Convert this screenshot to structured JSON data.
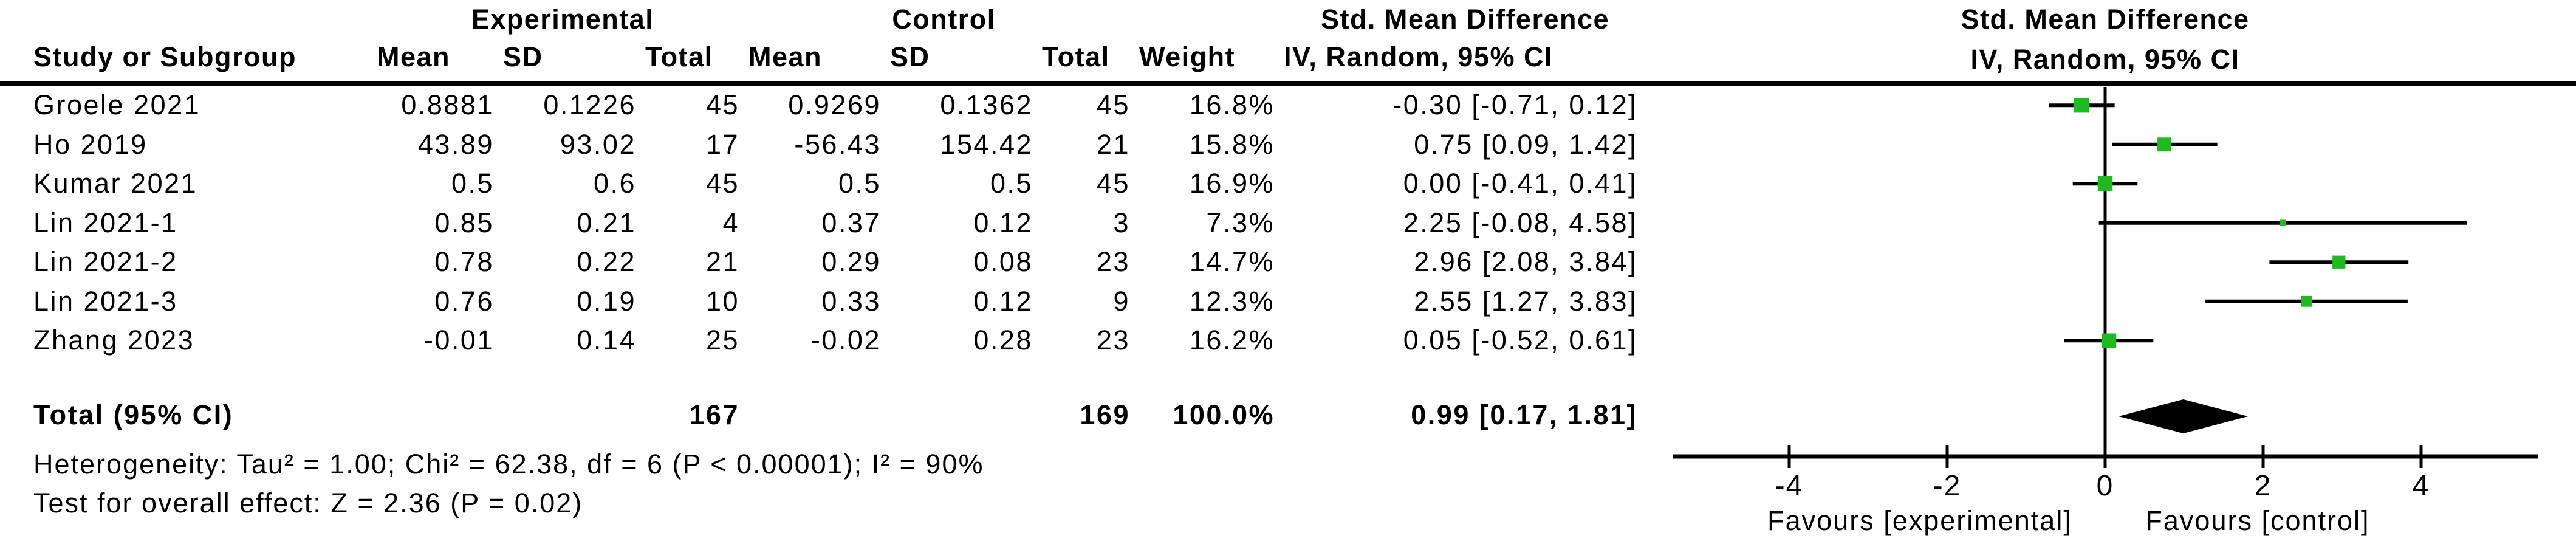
{
  "group_headers": {
    "experimental": "Experimental",
    "control": "Control",
    "smd_left": "Std. Mean Difference",
    "smd_right": "Std. Mean Difference"
  },
  "col_headers": {
    "study": "Study or Subgroup",
    "mean1": "Mean",
    "sd1": "SD",
    "total1": "Total",
    "mean2": "Mean",
    "sd2": "SD",
    "total2": "Total",
    "weight": "Weight",
    "iv_left": "IV, Random, 95% CI",
    "iv_right": "IV, Random, 95% CI"
  },
  "chart_data": {
    "type": "forest",
    "effect_measure": "Std. Mean Difference",
    "model": "IV, Random, 95% CI",
    "studies": [
      {
        "label": "Groele 2021",
        "exp_mean": "0.8881",
        "exp_sd": "0.1226",
        "exp_total": "45",
        "ctl_mean": "0.9269",
        "ctl_sd": "0.1362",
        "ctl_total": "45",
        "weight": "16.8%",
        "weight_value": 16.8,
        "ci_text": "-0.30 [-0.71, 0.12]",
        "est": -0.3,
        "lo": -0.71,
        "hi": 0.12
      },
      {
        "label": "Ho 2019",
        "exp_mean": "43.89",
        "exp_sd": "93.02",
        "exp_total": "17",
        "ctl_mean": "-56.43",
        "ctl_sd": "154.42",
        "ctl_total": "21",
        "weight": "15.8%",
        "weight_value": 15.8,
        "ci_text": "0.75 [0.09, 1.42]",
        "est": 0.75,
        "lo": 0.09,
        "hi": 1.42
      },
      {
        "label": "Kumar 2021",
        "exp_mean": "0.5",
        "exp_sd": "0.6",
        "exp_total": "45",
        "ctl_mean": "0.5",
        "ctl_sd": "0.5",
        "ctl_total": "45",
        "weight": "16.9%",
        "weight_value": 16.9,
        "ci_text": "0.00 [-0.41, 0.41]",
        "est": 0.0,
        "lo": -0.41,
        "hi": 0.41
      },
      {
        "label": "Lin 2021-1",
        "exp_mean": "0.85",
        "exp_sd": "0.21",
        "exp_total": "4",
        "ctl_mean": "0.37",
        "ctl_sd": "0.12",
        "ctl_total": "3",
        "weight": "7.3%",
        "weight_value": 7.3,
        "ci_text": "2.25 [-0.08, 4.58]",
        "est": 2.25,
        "lo": -0.08,
        "hi": 4.58
      },
      {
        "label": "Lin 2021-2",
        "exp_mean": "0.78",
        "exp_sd": "0.22",
        "exp_total": "21",
        "ctl_mean": "0.29",
        "ctl_sd": "0.08",
        "ctl_total": "23",
        "weight": "14.7%",
        "weight_value": 14.7,
        "ci_text": "2.96 [2.08, 3.84]",
        "est": 2.96,
        "lo": 2.08,
        "hi": 3.84
      },
      {
        "label": "Lin 2021-3",
        "exp_mean": "0.76",
        "exp_sd": "0.19",
        "exp_total": "10",
        "ctl_mean": "0.33",
        "ctl_sd": "0.12",
        "ctl_total": "9",
        "weight": "12.3%",
        "weight_value": 12.3,
        "ci_text": "2.55 [1.27, 3.83]",
        "est": 2.55,
        "lo": 1.27,
        "hi": 3.83
      },
      {
        "label": "Zhang 2023",
        "exp_mean": "-0.01",
        "exp_sd": "0.14",
        "exp_total": "25",
        "ctl_mean": "-0.02",
        "ctl_sd": "0.28",
        "ctl_total": "23",
        "weight": "16.2%",
        "weight_value": 16.2,
        "ci_text": "0.05 [-0.52, 0.61]",
        "est": 0.05,
        "lo": -0.52,
        "hi": 0.61
      }
    ],
    "total_row": {
      "label": "Total (95% CI)",
      "exp_total": "167",
      "ctl_total": "169",
      "weight": "100.0%",
      "ci_text": "0.99 [0.17, 1.81]",
      "est": 0.99,
      "lo": 0.17,
      "hi": 1.81
    },
    "axis": {
      "ticks": [
        -4,
        -2,
        0,
        2,
        4
      ],
      "min": -5.47,
      "max": 5.48,
      "zero": 0
    },
    "favours_left": "Favours [experimental]",
    "favours_right": "Favours [control]",
    "colors": {
      "square": "#1dbb1d",
      "diamond": "#000000",
      "line": "#000000",
      "axis": "#000000"
    }
  },
  "footer": {
    "heterogeneity": "Heterogeneity: Tau² = 1.00; Chi² = 62.38, df = 6 (P < 0.00001); I² = 90%",
    "overall_effect": "Test for overall effect: Z = 2.36 (P = 0.02)"
  }
}
